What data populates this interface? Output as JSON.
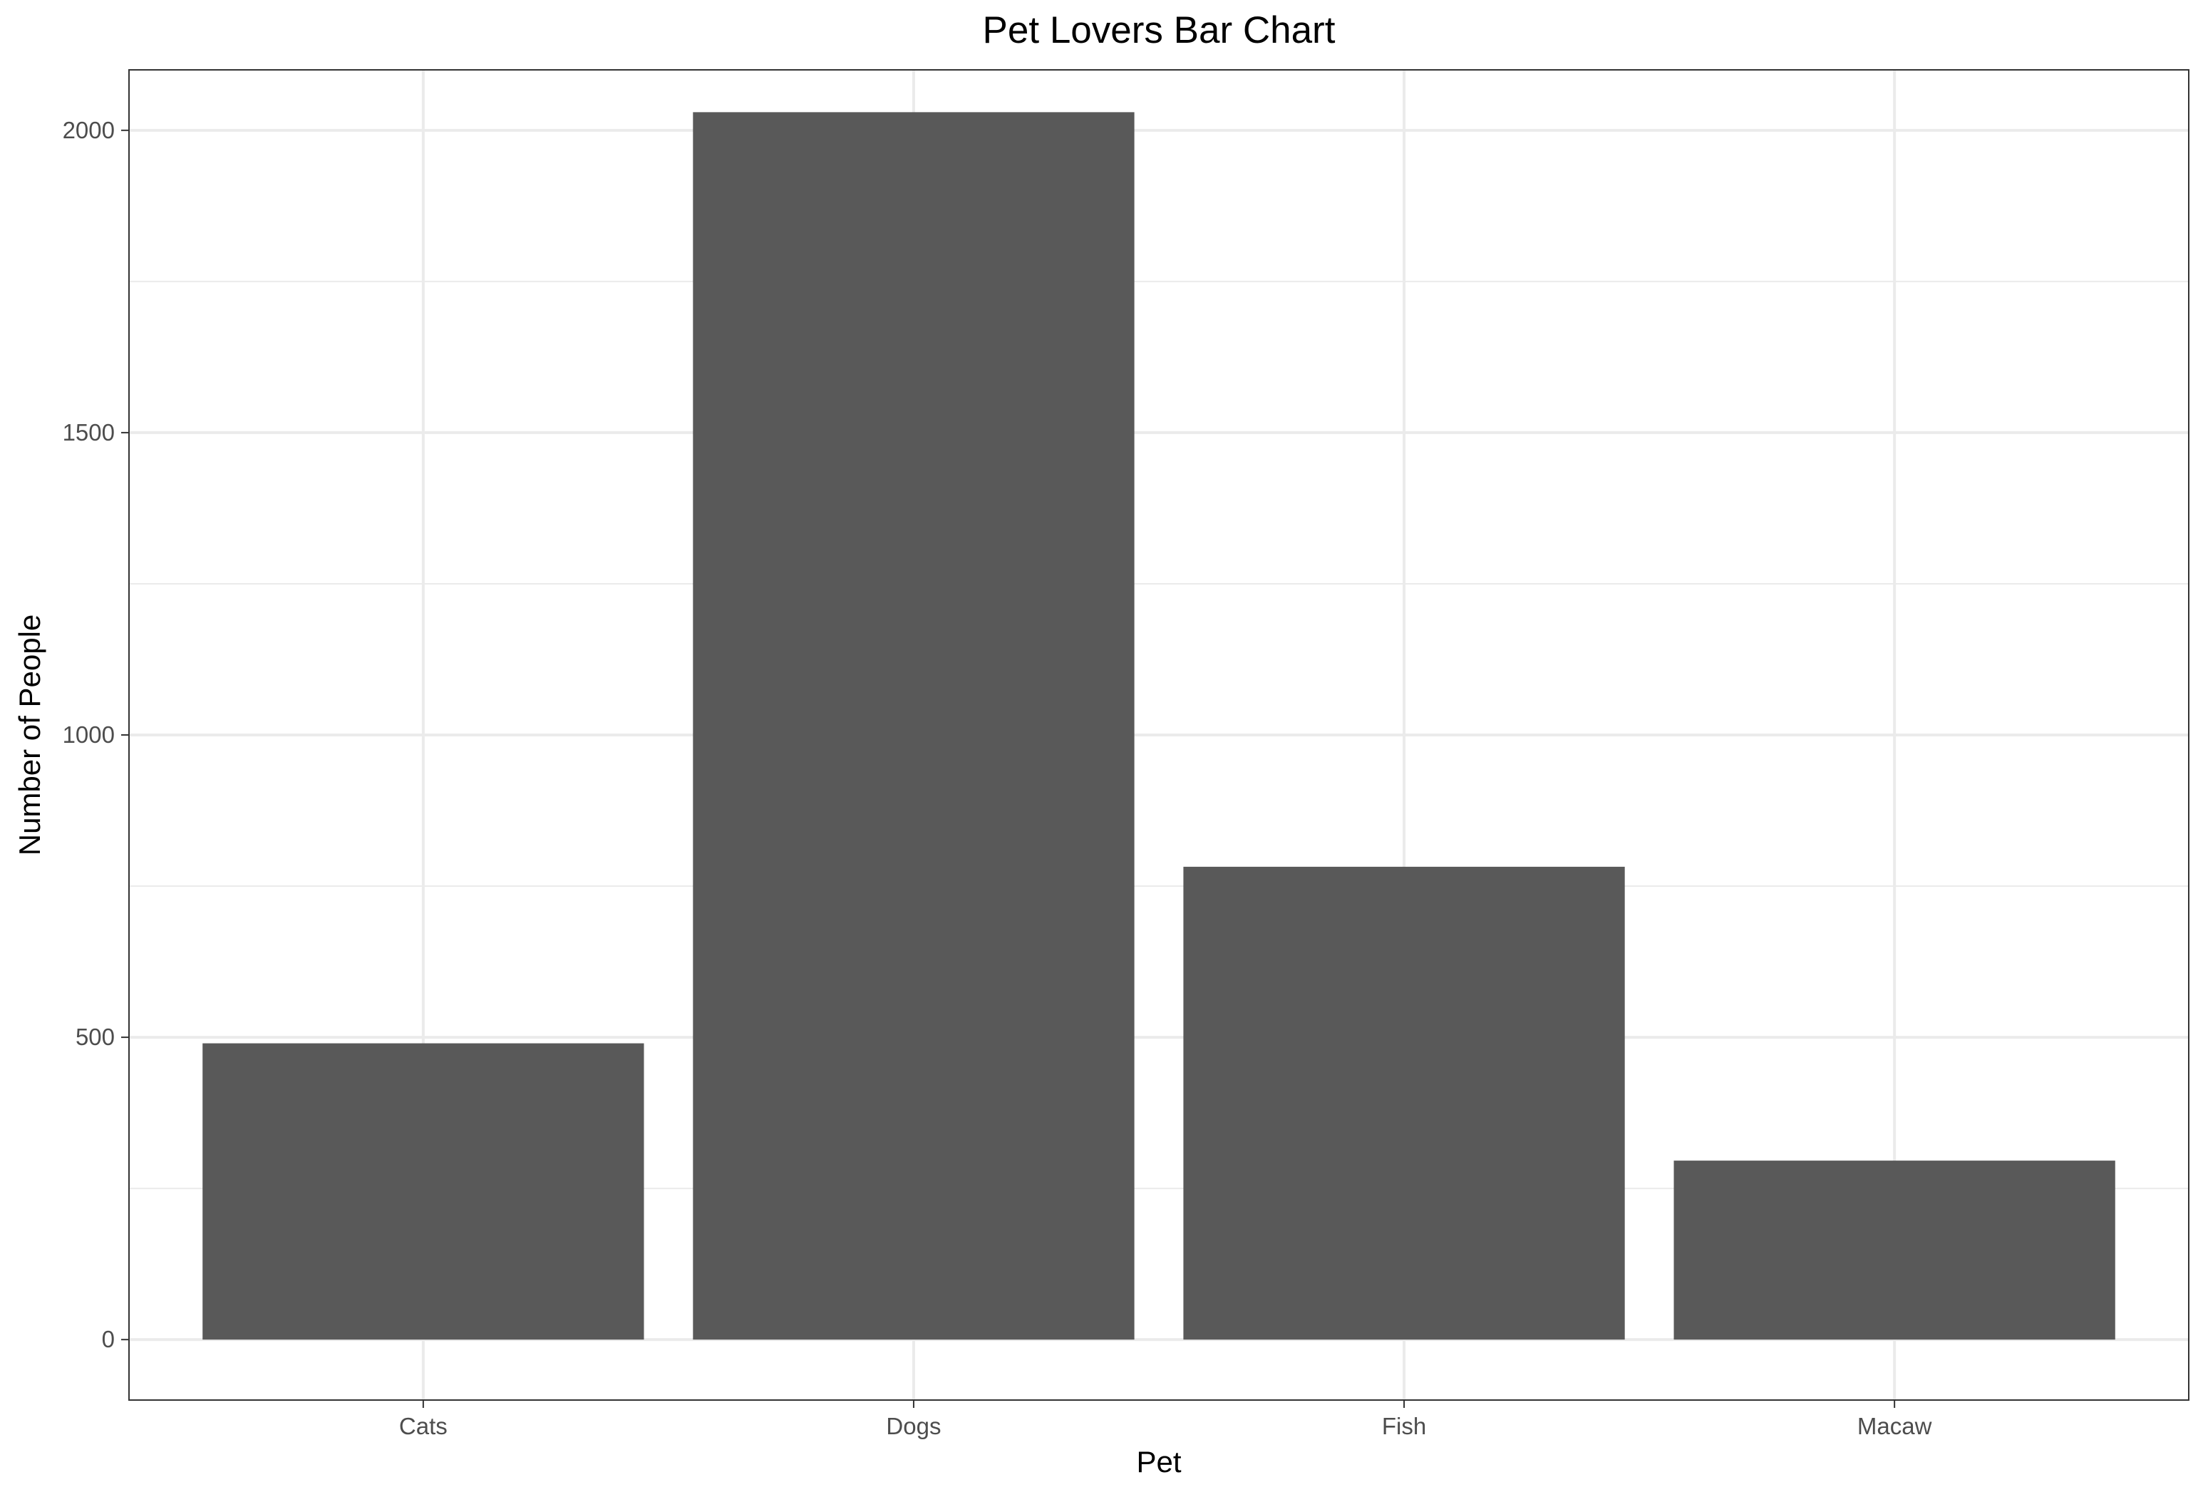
{
  "chart_data": {
    "type": "bar",
    "title": "Pet Lovers Bar Chart",
    "xlabel": "Pet",
    "ylabel": "Number of People",
    "categories": [
      "Cats",
      "Dogs",
      "Fish",
      "Macaw"
    ],
    "values": [
      490,
      2030,
      782,
      296
    ],
    "ylim": [
      -100,
      2100
    ],
    "yticks": [
      0,
      500,
      1000,
      1500,
      2000
    ],
    "yticks_minor": [
      250,
      750,
      1250,
      1750
    ],
    "grid": true,
    "legend": "none",
    "colors": {
      "bar": "#595959",
      "grid": "#ebebeb",
      "panel_border": "#333333",
      "tick_text": "#4d4d4d",
      "background": "#ffffff"
    }
  }
}
